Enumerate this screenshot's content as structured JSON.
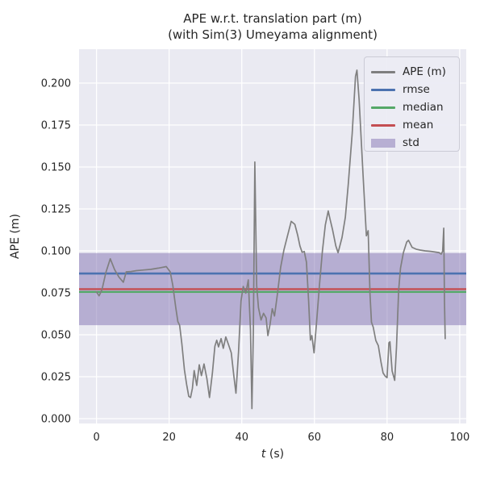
{
  "title": {
    "line1": "APE w.r.t. translation part (m)",
    "line2": "(with Sim(3) Umeyama alignment)"
  },
  "axes": {
    "ylabel": "APE (m)",
    "xlabel_var": "t",
    "xlabel_rest": " (s)",
    "x_ticks": [
      "0",
      "20",
      "40",
      "60",
      "80",
      "100"
    ],
    "x_tick_values": [
      0,
      20,
      40,
      60,
      80,
      100
    ],
    "y_ticks": [
      "0.000",
      "0.025",
      "0.050",
      "0.075",
      "0.100",
      "0.125",
      "0.150",
      "0.175",
      "0.200"
    ],
    "y_tick_values": [
      0,
      0.025,
      0.05,
      0.075,
      0.1,
      0.125,
      0.15,
      0.175,
      0.2
    ]
  },
  "legend": {
    "entries": [
      {
        "label": "APE (m)",
        "type": "line",
        "color": "#7f7f7f"
      },
      {
        "label": "rmse",
        "type": "line",
        "color": "#4C72B0"
      },
      {
        "label": "median",
        "type": "line",
        "color": "#55A868"
      },
      {
        "label": "mean",
        "type": "line",
        "color": "#C44E52"
      },
      {
        "label": "std",
        "type": "patch",
        "color": "#8172B2",
        "opacity": 0.5
      }
    ]
  },
  "colors": {
    "plot_background": "#EAEAF2",
    "grid": "#FFFFFF",
    "ape_line": "#7f7f7f",
    "rmse": "#4C72B0",
    "median": "#55A868",
    "mean": "#C44E52",
    "std_band": "#8172B2",
    "text": "#262626"
  },
  "chart_data": {
    "type": "line",
    "title": "APE w.r.t. translation part (m) (with Sim(3) Umeyama alignment)",
    "xlabel": "t (s)",
    "ylabel": "APE (m)",
    "xlim": [
      -4.8,
      101.8
    ],
    "ylim": [
      -0.0029,
      0.2202
    ],
    "grid": true,
    "legend_position": "upper right",
    "stats": {
      "rmse": 0.0865,
      "median": 0.0755,
      "mean": 0.0772,
      "std": 0.0215,
      "std_band": [
        0.0557,
        0.0987
      ]
    },
    "series": [
      {
        "name": "APE (m)",
        "points": [
          [
            0,
            0.0755
          ],
          [
            0.7,
            0.0732
          ],
          [
            1.5,
            0.0768
          ],
          [
            2.6,
            0.0872
          ],
          [
            3.8,
            0.0953
          ],
          [
            5.0,
            0.0888
          ],
          [
            6.2,
            0.0843
          ],
          [
            7.4,
            0.0813
          ],
          [
            8.2,
            0.0875
          ],
          [
            9.5,
            0.0877
          ],
          [
            11,
            0.0882
          ],
          [
            13,
            0.0886
          ],
          [
            15,
            0.089
          ],
          [
            17,
            0.0897
          ],
          [
            19.2,
            0.0906
          ],
          [
            20.3,
            0.0875
          ],
          [
            21,
            0.0795
          ],
          [
            21.8,
            0.0665
          ],
          [
            22.4,
            0.0578
          ],
          [
            22.9,
            0.0556
          ],
          [
            23.5,
            0.0448
          ],
          [
            24.2,
            0.0292
          ],
          [
            24.8,
            0.0205
          ],
          [
            25.4,
            0.0133
          ],
          [
            25.9,
            0.0126
          ],
          [
            26.4,
            0.018
          ],
          [
            26.9,
            0.0287
          ],
          [
            27.6,
            0.0198
          ],
          [
            28.3,
            0.0321
          ],
          [
            28.9,
            0.0256
          ],
          [
            29.6,
            0.0326
          ],
          [
            30.4,
            0.0238
          ],
          [
            31.1,
            0.0126
          ],
          [
            31.9,
            0.0272
          ],
          [
            32.6,
            0.0432
          ],
          [
            33.1,
            0.0467
          ],
          [
            33.6,
            0.0428
          ],
          [
            34.3,
            0.0477
          ],
          [
            34.9,
            0.0419
          ],
          [
            35.6,
            0.0487
          ],
          [
            36.4,
            0.0438
          ],
          [
            37.1,
            0.0392
          ],
          [
            37.8,
            0.0258
          ],
          [
            38.4,
            0.0152
          ],
          [
            39.1,
            0.0398
          ],
          [
            39.8,
            0.0702
          ],
          [
            40.4,
            0.0788
          ],
          [
            41.1,
            0.0748
          ],
          [
            41.8,
            0.0827
          ],
          [
            42.4,
            0.053
          ],
          [
            42.8,
            0.006
          ],
          [
            43.2,
            0.0528
          ],
          [
            43.6,
            0.153
          ],
          [
            44.1,
            0.0792
          ],
          [
            44.6,
            0.0662
          ],
          [
            45.3,
            0.0588
          ],
          [
            46.0,
            0.0628
          ],
          [
            46.7,
            0.06
          ],
          [
            47.2,
            0.0495
          ],
          [
            47.8,
            0.0563
          ],
          [
            48.4,
            0.0655
          ],
          [
            49.0,
            0.0612
          ],
          [
            49.8,
            0.0742
          ],
          [
            50.7,
            0.0902
          ],
          [
            51.6,
            0.1006
          ],
          [
            52.6,
            0.1092
          ],
          [
            53.6,
            0.1176
          ],
          [
            54.6,
            0.1158
          ],
          [
            55.4,
            0.1092
          ],
          [
            56.0,
            0.103
          ],
          [
            56.6,
            0.0992
          ],
          [
            57.2,
            0.0996
          ],
          [
            57.8,
            0.0932
          ],
          [
            58.4,
            0.07
          ],
          [
            58.9,
            0.0468
          ],
          [
            59.3,
            0.0495
          ],
          [
            59.9,
            0.0392
          ],
          [
            60.6,
            0.0578
          ],
          [
            61.4,
            0.08
          ],
          [
            62.2,
            0.1
          ],
          [
            63.0,
            0.1155
          ],
          [
            63.8,
            0.1238
          ],
          [
            64.3,
            0.119
          ],
          [
            65.0,
            0.1125
          ],
          [
            65.9,
            0.103
          ],
          [
            66.5,
            0.0989
          ],
          [
            67.6,
            0.108
          ],
          [
            68.5,
            0.12
          ],
          [
            69.3,
            0.1395
          ],
          [
            70.4,
            0.17
          ],
          [
            71.3,
            0.204
          ],
          [
            71.7,
            0.2077
          ],
          [
            72.3,
            0.19
          ],
          [
            73.4,
            0.145
          ],
          [
            74.3,
            0.109
          ],
          [
            74.8,
            0.112
          ],
          [
            75.3,
            0.074
          ],
          [
            75.7,
            0.0575
          ],
          [
            76.2,
            0.0545
          ],
          [
            76.9,
            0.0466
          ],
          [
            77.6,
            0.0435
          ],
          [
            78.3,
            0.034
          ],
          [
            78.9,
            0.0272
          ],
          [
            79.5,
            0.0253
          ],
          [
            80.0,
            0.0244
          ],
          [
            80.5,
            0.0452
          ],
          [
            80.8,
            0.0458
          ],
          [
            81.4,
            0.0284
          ],
          [
            82.1,
            0.0228
          ],
          [
            82.6,
            0.0424
          ],
          [
            83.2,
            0.0766
          ],
          [
            83.7,
            0.0897
          ],
          [
            84.5,
            0.099
          ],
          [
            85.4,
            0.1053
          ],
          [
            85.9,
            0.1063
          ],
          [
            86.9,
            0.1021
          ],
          [
            88.0,
            0.101
          ],
          [
            89.1,
            0.1005
          ],
          [
            90.5,
            0.1
          ],
          [
            92.0,
            0.0997
          ],
          [
            93.2,
            0.0993
          ],
          [
            94.3,
            0.099
          ],
          [
            94.9,
            0.098
          ],
          [
            95.3,
            0.0997
          ],
          [
            95.6,
            0.1135
          ],
          [
            95.8,
            0.07
          ],
          [
            96.0,
            0.0477
          ]
        ]
      }
    ]
  }
}
